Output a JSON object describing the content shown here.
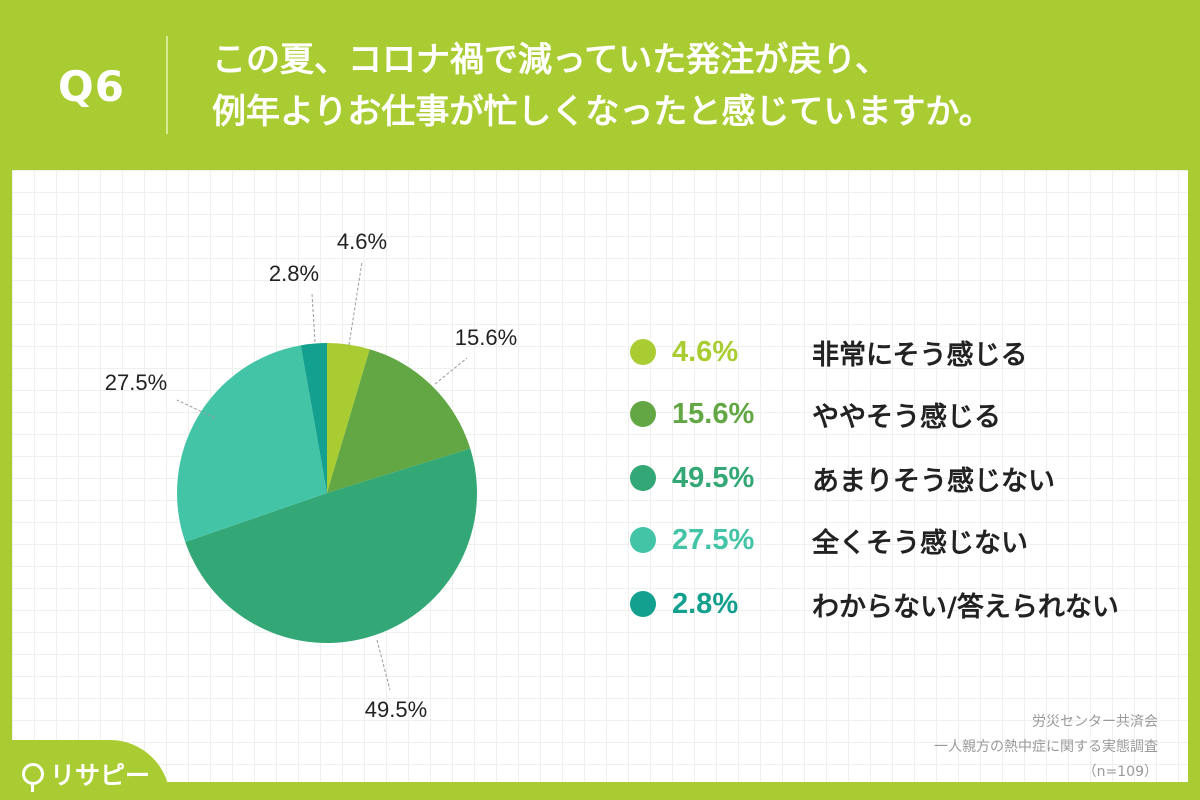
{
  "header": {
    "q_label": "Q6",
    "title_lines": [
      "この夏、コロナ禍で減っていた発注が戻り、",
      "例年よりお仕事が忙しくなったと感じていますか。"
    ]
  },
  "chart_data": {
    "type": "pie",
    "unit": "%",
    "slices": [
      {
        "label": "非常にそう感じる",
        "value": 4.6,
        "display": "4.6%",
        "color": "#a9cc32"
      },
      {
        "label": "ややそう感じる",
        "value": 15.6,
        "display": "15.6%",
        "color": "#62a744"
      },
      {
        "label": "あまりそう感じない",
        "value": 49.5,
        "display": "49.5%",
        "color": "#33a876"
      },
      {
        "label": "全くそう感じない",
        "value": 27.5,
        "display": "27.5%",
        "color": "#44c4a6"
      },
      {
        "label": "わからない/答えられない",
        "value": 2.8,
        "display": "2.8%",
        "color": "#13a08e"
      }
    ],
    "start": "12 o'clock",
    "direction": "clockwise"
  },
  "source": {
    "line1": "労災センター共済会",
    "line2": "一人親方の熱中症に関する実態調査",
    "line3": "（n=109）"
  },
  "logo": {
    "text": "リサピー"
  }
}
